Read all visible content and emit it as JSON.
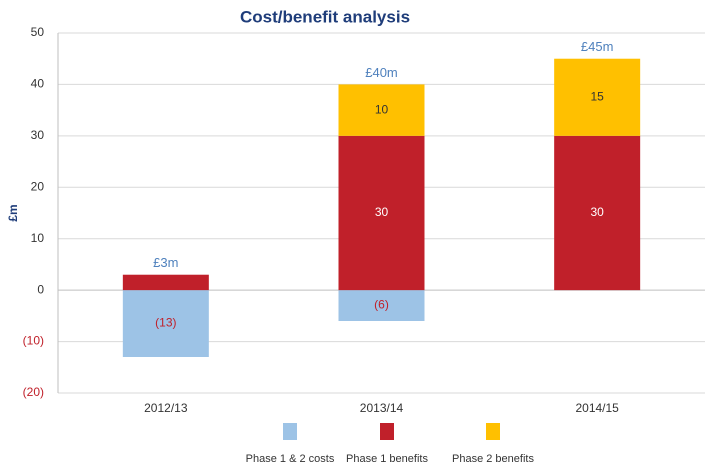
{
  "chart_data": {
    "type": "stacked-bar",
    "title": "Cost/benefit analysis",
    "y_label": "£m",
    "categories": [
      "2012/13",
      "2013/14",
      "2014/15"
    ],
    "series": [
      {
        "name": "Phase 1 & 2 costs",
        "color": "#9dc3e6",
        "label_color": "#c0202a",
        "values": [
          -13,
          -6,
          null
        ],
        "value_labels": [
          "(13)",
          "(6)",
          null
        ]
      },
      {
        "name": "Phase 1 benefits",
        "color": "#c0202a",
        "label_color": "#ffffff",
        "values": [
          3,
          30,
          30
        ],
        "value_labels": [
          null,
          "30",
          "30"
        ]
      },
      {
        "name": "Phase 2 benefits",
        "color": "#ffc000",
        "label_color": "#333333",
        "values": [
          null,
          10,
          15
        ],
        "value_labels": [
          null,
          "10",
          "15"
        ]
      }
    ],
    "totals": {
      "values": [
        3,
        40,
        45
      ],
      "value_labels": [
        "£3m",
        "£40m",
        "£45m"
      ],
      "color": "#4f81bd"
    },
    "ylim": [
      -20,
      50
    ],
    "yticks": [
      {
        "value": -20,
        "label": "(20)"
      },
      {
        "value": -10,
        "label": "(10)"
      },
      0,
      10,
      20,
      30,
      40,
      50
    ],
    "negative_tick_color": "#c0202a",
    "grid": true
  }
}
